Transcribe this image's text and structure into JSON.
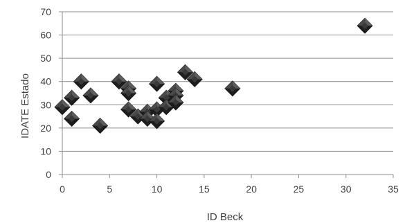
{
  "chart_data": {
    "type": "scatter",
    "xlabel": "ID Beck",
    "ylabel": "IDATE  Estado",
    "xlim": [
      0,
      35
    ],
    "ylim": [
      0,
      70
    ],
    "x_ticks": [
      0,
      5,
      10,
      15,
      20,
      25,
      30,
      35
    ],
    "y_ticks": [
      0,
      10,
      20,
      30,
      40,
      50,
      60,
      70
    ],
    "grid": "horizontal",
    "legend": "none",
    "marker": "diamond",
    "marker_color": "#3a3a3a",
    "points": [
      {
        "x": 0,
        "y": 29
      },
      {
        "x": 1,
        "y": 33
      },
      {
        "x": 1,
        "y": 24
      },
      {
        "x": 2,
        "y": 40
      },
      {
        "x": 3,
        "y": 34
      },
      {
        "x": 4,
        "y": 21
      },
      {
        "x": 6,
        "y": 40
      },
      {
        "x": 7,
        "y": 37
      },
      {
        "x": 7,
        "y": 35
      },
      {
        "x": 7,
        "y": 28
      },
      {
        "x": 8,
        "y": 25
      },
      {
        "x": 9,
        "y": 27
      },
      {
        "x": 9,
        "y": 24
      },
      {
        "x": 10,
        "y": 39
      },
      {
        "x": 10,
        "y": 28
      },
      {
        "x": 10,
        "y": 23
      },
      {
        "x": 11,
        "y": 33
      },
      {
        "x": 11,
        "y": 29
      },
      {
        "x": 12,
        "y": 36
      },
      {
        "x": 12,
        "y": 34
      },
      {
        "x": 12,
        "y": 31
      },
      {
        "x": 13,
        "y": 44
      },
      {
        "x": 14,
        "y": 41
      },
      {
        "x": 18,
        "y": 37
      },
      {
        "x": 32,
        "y": 64
      }
    ]
  }
}
